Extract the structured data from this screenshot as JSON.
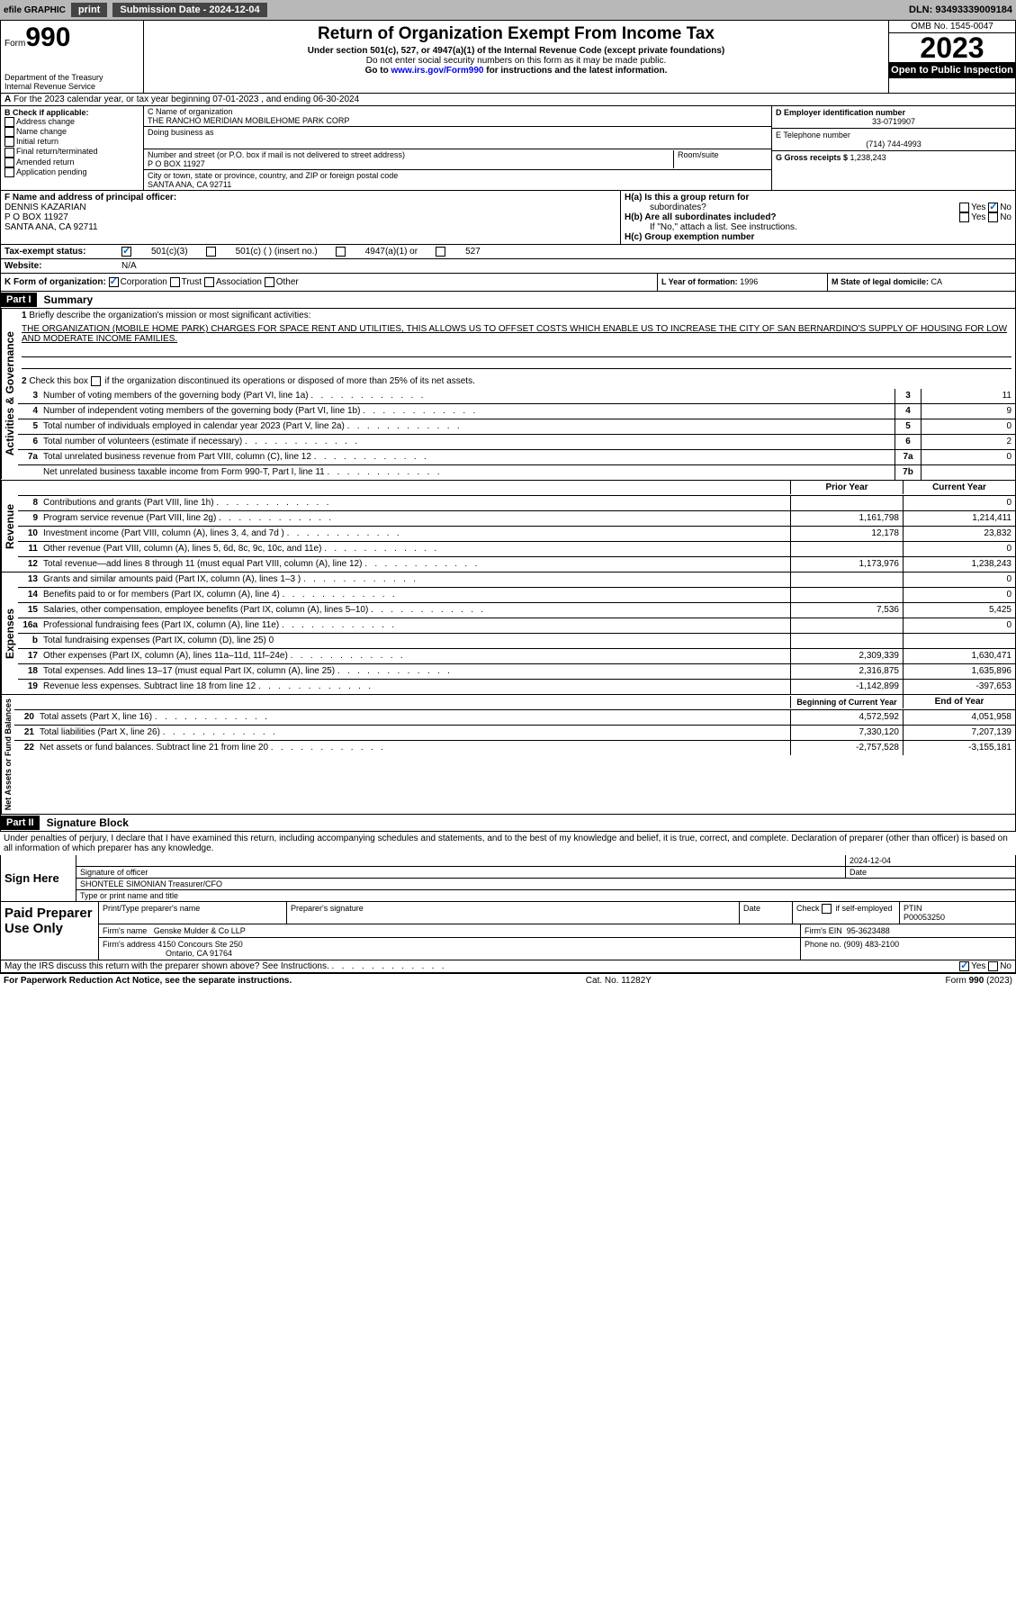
{
  "toolbar": {
    "efile": "efile GRAPHIC",
    "print": "print",
    "subdate_lbl": "Submission Date - ",
    "subdate": "2024-12-04",
    "dln_lbl": "DLN: ",
    "dln": "93493339009184"
  },
  "header": {
    "form_lbl": "Form",
    "form_num": "990",
    "dept": "Department of the Treasury",
    "irs": "Internal Revenue Service",
    "title": "Return of Organization Exempt From Income Tax",
    "sub1": "Under section 501(c), 527, or 4947(a)(1) of the Internal Revenue Code (except private foundations)",
    "sub2": "Do not enter social security numbers on this form as it may be made public.",
    "sub3": "Go to ",
    "link": "www.irs.gov/Form990",
    "sub4": " for instructions and the latest information.",
    "omb": "OMB No. 1545-0047",
    "year": "2023",
    "otp": "Open to Public Inspection"
  },
  "lineA": "For the 2023 calendar year, or tax year beginning 07-01-2023    , and ending 06-30-2024",
  "boxB": {
    "hdr": "B Check if applicable:",
    "opts": [
      "Address change",
      "Name change",
      "Initial return",
      "Final return/terminated",
      "Amended return",
      "Application pending"
    ]
  },
  "boxC": {
    "lbl": "C Name of organization",
    "name": "THE RANCHO MERIDIAN MOBILEHOME PARK CORP",
    "dba_lbl": "Doing business as",
    "dba": "",
    "addr_lbl": "Number and street (or P.O. box if mail is not delivered to street address)",
    "room_lbl": "Room/suite",
    "addr": "P O BOX 11927",
    "city_lbl": "City or town, state or province, country, and ZIP or foreign postal code",
    "city": "SANTA ANA, CA  92711"
  },
  "boxD": {
    "lbl": "D Employer identification number",
    "val": "33-0719907"
  },
  "boxE": {
    "lbl": "E Telephone number",
    "val": "(714) 744-4993"
  },
  "boxG": {
    "lbl": "G Gross receipts $ ",
    "val": "1,238,243"
  },
  "boxF": {
    "lbl": "F  Name and address of principal officer:",
    "name": "DENNIS KAZARIAN",
    "addr1": "P O BOX 11927",
    "addr2": "SANTA ANA, CA  92711"
  },
  "boxH": {
    "a": "H(a)  Is this a group return for",
    "a2": "subordinates?",
    "b": "H(b)  Are all subordinates included?",
    "note": "If \"No,\" attach a list. See instructions.",
    "c": "H(c)  Group exemption number",
    "yn": "Yes",
    "no": "No"
  },
  "boxI": {
    "lbl": "Tax-exempt status:",
    "o1": "501(c)(3)",
    "o2": "501(c) (  ) (insert no.)",
    "o3": "4947(a)(1) or",
    "o4": "527"
  },
  "boxJ": {
    "lbl": "Website:",
    "val": "N/A"
  },
  "boxK": {
    "lbl": "K Form of organization:",
    "opts": [
      "Corporation",
      "Trust",
      "Association",
      "Other"
    ]
  },
  "boxL": {
    "lbl": "L Year of formation: ",
    "val": "1996"
  },
  "boxM": {
    "lbl": "M State of legal domicile: ",
    "val": "CA"
  },
  "part1": {
    "hdr": "Part I",
    "title": "Summary"
  },
  "sec1": {
    "tab": "Activities & Governance",
    "l1": "Briefly describe the organization's mission or most significant activities:",
    "mission": "THE ORGANIZATION (MOBILE HOME PARK) CHARGES FOR SPACE RENT AND UTILITIES, THIS ALLOWS US TO OFFSET COSTS WHICH ENABLE US TO INCREASE THE CITY OF SAN BERNARDINO'S SUPPLY OF HOUSING FOR LOW AND MODERATE INCOME FAMILIES.",
    "l2": "Check this box      if the organization discontinued its operations or disposed of more than 25% of its net assets.",
    "rows": [
      {
        "n": "3",
        "t": "Number of voting members of the governing body (Part VI, line 1a)",
        "b": "3",
        "v": "11"
      },
      {
        "n": "4",
        "t": "Number of independent voting members of the governing body (Part VI, line 1b)",
        "b": "4",
        "v": "9"
      },
      {
        "n": "5",
        "t": "Total number of individuals employed in calendar year 2023 (Part V, line 2a)",
        "b": "5",
        "v": "0"
      },
      {
        "n": "6",
        "t": "Total number of volunteers (estimate if necessary)",
        "b": "6",
        "v": "2"
      },
      {
        "n": "7a",
        "t": "Total unrelated business revenue from Part VIII, column (C), line 12",
        "b": "7a",
        "v": "0"
      },
      {
        "n": "",
        "t": "Net unrelated business taxable income from Form 990-T, Part I, line 11",
        "b": "7b",
        "v": ""
      }
    ]
  },
  "rev": {
    "tab": "Revenue",
    "py": "Prior Year",
    "cy": "Current Year",
    "rows": [
      {
        "n": "8",
        "t": "Contributions and grants (Part VIII, line 1h)",
        "p": "",
        "c": "0"
      },
      {
        "n": "9",
        "t": "Program service revenue (Part VIII, line 2g)",
        "p": "1,161,798",
        "c": "1,214,411"
      },
      {
        "n": "10",
        "t": "Investment income (Part VIII, column (A), lines 3, 4, and 7d )",
        "p": "12,178",
        "c": "23,832"
      },
      {
        "n": "11",
        "t": "Other revenue (Part VIII, column (A), lines 5, 6d, 8c, 9c, 10c, and 11e)",
        "p": "",
        "c": "0"
      },
      {
        "n": "12",
        "t": "Total revenue—add lines 8 through 11 (must equal Part VIII, column (A), line 12)",
        "p": "1,173,976",
        "c": "1,238,243"
      }
    ]
  },
  "exp": {
    "tab": "Expenses",
    "rows": [
      {
        "n": "13",
        "t": "Grants and similar amounts paid (Part IX, column (A), lines 1–3 )",
        "p": "",
        "c": "0"
      },
      {
        "n": "14",
        "t": "Benefits paid to or for members (Part IX, column (A), line 4)",
        "p": "",
        "c": "0"
      },
      {
        "n": "15",
        "t": "Salaries, other compensation, employee benefits (Part IX, column (A), lines 5–10)",
        "p": "7,536",
        "c": "5,425"
      },
      {
        "n": "16a",
        "t": "Professional fundraising fees (Part IX, column (A), line 11e)",
        "p": "",
        "c": "0"
      },
      {
        "n": "b",
        "t": "Total fundraising expenses (Part IX, column (D), line 25) 0",
        "grey": true
      },
      {
        "n": "17",
        "t": "Other expenses (Part IX, column (A), lines 11a–11d, 11f–24e)",
        "p": "2,309,339",
        "c": "1,630,471"
      },
      {
        "n": "18",
        "t": "Total expenses. Add lines 13–17 (must equal Part IX, column (A), line 25)",
        "p": "2,316,875",
        "c": "1,635,896"
      },
      {
        "n": "19",
        "t": "Revenue less expenses. Subtract line 18 from line 12",
        "p": "-1,142,899",
        "c": "-397,653"
      }
    ]
  },
  "net": {
    "tab": "Net Assets or Fund Balances",
    "h1": "Beginning of Current Year",
    "h2": "End of Year",
    "rows": [
      {
        "n": "20",
        "t": "Total assets (Part X, line 16)",
        "p": "4,572,592",
        "c": "4,051,958"
      },
      {
        "n": "21",
        "t": "Total liabilities (Part X, line 26)",
        "p": "7,330,120",
        "c": "7,207,139"
      },
      {
        "n": "22",
        "t": "Net assets or fund balances. Subtract line 21 from line 20",
        "p": "-2,757,528",
        "c": "-3,155,181"
      }
    ]
  },
  "part2": {
    "hdr": "Part II",
    "title": "Signature Block",
    "decl": "Under penalties of perjury, I declare that I have examined this return, including accompanying schedules and statements, and to the best of my knowledge and belief, it is true, correct, and complete. Declaration of preparer (other than officer) is based on all information of which preparer has any knowledge."
  },
  "sign": {
    "lbl": "Sign Here",
    "sig_lbl": "Signature of officer",
    "date": "2024-12-04",
    "date_lbl": "Date",
    "name": "SHONTELE SIMONIAN  Treasurer/CFO",
    "type_lbl": "Type or print name and title"
  },
  "paid": {
    "lbl": "Paid Preparer Use Only",
    "h": [
      "Print/Type preparer's name",
      "Preparer's signature",
      "Date",
      "Check       if self-employed",
      "PTIN"
    ],
    "ptin": "P00053250",
    "firm_lbl": "Firm's name",
    "firm": "Genske Mulder & Co LLP",
    "ein_lbl": "Firm's EIN",
    "ein": "95-3623488",
    "addr_lbl": "Firm's address",
    "addr1": "4150 Concours Ste 250",
    "addr2": "Ontario, CA  91764",
    "phone_lbl": "Phone no.",
    "phone": "(909) 483-2100"
  },
  "discuss": "May the IRS discuss this return with the preparer shown above? See Instructions.",
  "footer": {
    "l": "For Paperwork Reduction Act Notice, see the separate instructions.",
    "m": "Cat. No. 11282Y",
    "r": "Form 990 (2023)"
  }
}
